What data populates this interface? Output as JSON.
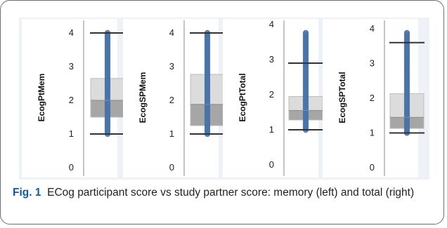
{
  "caption": {
    "label": "Fig. 1",
    "text": "ECog participant score vs study partner score: memory (left) and total (right)"
  },
  "colors": {
    "points": "#4a73a8",
    "whisker": "#333333",
    "box_upper": "#dcdcdc",
    "box_lower": "#a6a6a6",
    "spine": "#888888"
  },
  "chart_data": [
    {
      "type": "box",
      "ylabel": "EcogPtMem",
      "yticks": [
        0,
        1,
        2,
        3,
        4
      ],
      "ylim": [
        0,
        4
      ],
      "box": {
        "whisker_low": 1.0,
        "q1": 1.5,
        "median": 2.0,
        "q3": 2.65,
        "whisker_high": 4.0
      },
      "points_range": [
        1.0,
        4.0
      ]
    },
    {
      "type": "box",
      "ylabel": "EcogSPMem",
      "yticks": [
        0,
        1,
        2,
        3,
        4
      ],
      "ylim": [
        0,
        4
      ],
      "box": {
        "whisker_low": 1.0,
        "q1": 1.25,
        "median": 1.88,
        "q3": 2.77,
        "whisker_high": 4.0
      },
      "points_range": [
        1.0,
        4.0
      ]
    },
    {
      "type": "box",
      "ylabel": "EcogPtTotal",
      "yticks": [
        0,
        1,
        2,
        3,
        4
      ],
      "ylim": [
        0,
        4
      ],
      "box": {
        "whisker_low": 1.0,
        "q1": 1.28,
        "median": 1.55,
        "q3": 1.95,
        "whisker_high": 2.9
      },
      "points_range": [
        1.0,
        3.8
      ]
    },
    {
      "type": "box",
      "ylabel": "EcogSPTotal",
      "yticks": [
        0,
        1,
        2,
        3,
        4
      ],
      "ylim": [
        0,
        4
      ],
      "box": {
        "whisker_low": 1.0,
        "q1": 1.13,
        "median": 1.45,
        "q3": 2.13,
        "whisker_high": 3.6
      },
      "points_range": [
        1.0,
        3.9
      ]
    }
  ]
}
